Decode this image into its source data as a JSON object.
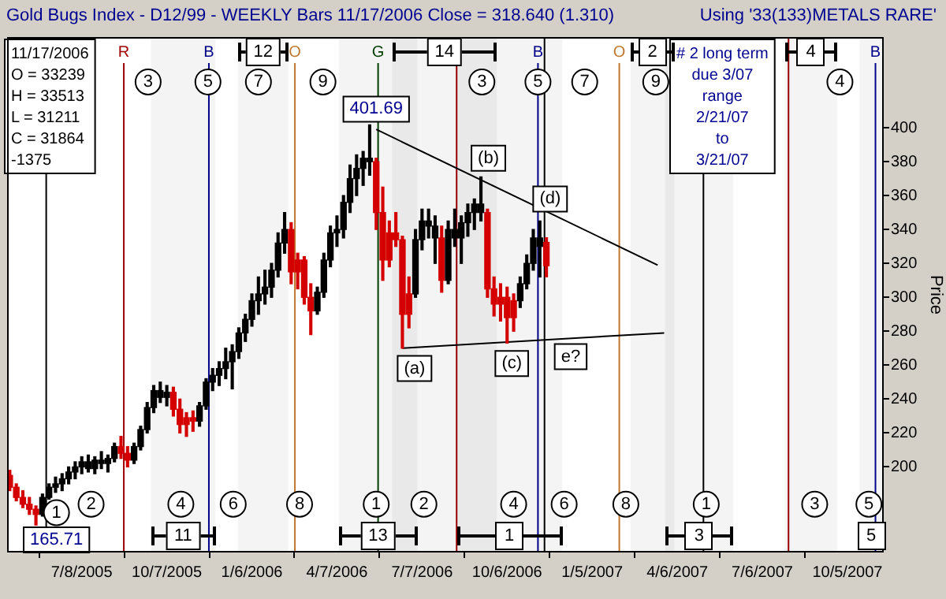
{
  "chart_data": {
    "type": "candlestick",
    "title": "Gold Bugs Index - D12/99  - WEEKLY Bars  11/17/2006 Close = 318.640 (1.310)",
    "subtitle": "Using '33(133)METALS RARE'",
    "ylabel": "Price",
    "x": [
      "2005-04-22",
      "2005-04-29",
      "2005-05-06",
      "2005-05-13",
      "2005-05-20",
      "2005-05-27",
      "2005-06-03",
      "2005-06-10",
      "2005-06-17",
      "2005-06-24",
      "2005-07-01",
      "2005-07-08",
      "2005-07-15",
      "2005-07-22",
      "2005-07-29",
      "2005-08-05",
      "2005-08-12",
      "2005-08-19",
      "2005-08-26",
      "2005-09-02",
      "2005-09-09",
      "2005-09-16",
      "2005-09-23",
      "2005-09-30",
      "2005-10-07",
      "2005-10-14",
      "2005-10-21",
      "2005-10-28",
      "2005-11-04",
      "2005-11-11",
      "2005-11-18",
      "2005-11-25",
      "2005-12-02",
      "2005-12-09",
      "2005-12-16",
      "2005-12-23",
      "2005-12-30",
      "2006-01-06",
      "2006-01-13",
      "2006-01-20",
      "2006-01-27",
      "2006-02-03",
      "2006-02-10",
      "2006-02-17",
      "2006-02-24",
      "2006-03-03",
      "2006-03-10",
      "2006-03-17",
      "2006-03-24",
      "2006-03-31",
      "2006-04-07",
      "2006-04-14",
      "2006-04-21",
      "2006-04-28",
      "2006-05-05",
      "2006-05-12",
      "2006-05-19",
      "2006-05-26",
      "2006-06-02",
      "2006-06-09",
      "2006-06-16",
      "2006-06-23",
      "2006-06-30",
      "2006-07-07",
      "2006-07-14",
      "2006-07-21",
      "2006-07-28",
      "2006-08-04",
      "2006-08-11",
      "2006-08-18",
      "2006-08-25",
      "2006-09-01",
      "2006-09-08",
      "2006-09-15",
      "2006-09-22",
      "2006-09-29",
      "2006-10-06",
      "2006-10-13",
      "2006-10-20",
      "2006-10-27",
      "2006-11-03",
      "2006-11-10",
      "2006-11-17"
    ],
    "ohlc": [
      [
        195,
        198,
        186,
        188
      ],
      [
        188,
        190,
        180,
        182
      ],
      [
        182,
        186,
        176,
        178
      ],
      [
        178,
        182,
        172,
        175
      ],
      [
        175,
        177,
        165.71,
        172
      ],
      [
        172,
        184,
        171,
        182
      ],
      [
        182,
        190,
        181,
        188
      ],
      [
        188,
        194,
        185,
        190
      ],
      [
        190,
        196,
        186,
        193
      ],
      [
        193,
        200,
        190,
        197
      ],
      [
        197,
        203,
        193,
        200
      ],
      [
        200,
        206,
        196,
        203
      ],
      [
        199,
        207,
        197,
        203
      ],
      [
        199,
        206,
        196,
        204
      ],
      [
        202,
        209,
        199,
        204
      ],
      [
        202,
        207,
        197,
        205
      ],
      [
        205,
        214,
        203,
        212
      ],
      [
        212,
        218,
        205,
        208
      ],
      [
        208,
        212,
        200,
        204
      ],
      [
        204,
        214,
        202,
        212
      ],
      [
        212,
        224,
        210,
        222
      ],
      [
        222,
        238,
        220,
        235
      ],
      [
        235,
        248,
        232,
        245
      ],
      [
        241,
        250,
        238,
        245
      ],
      [
        241,
        248,
        236,
        244
      ],
      [
        244,
        247,
        230,
        234
      ],
      [
        234,
        240,
        220,
        225
      ],
      [
        229,
        232,
        218,
        225
      ],
      [
        229,
        233,
        221,
        227
      ],
      [
        227,
        238,
        224,
        236
      ],
      [
        236,
        252,
        234,
        250
      ],
      [
        250,
        258,
        245,
        254
      ],
      [
        254,
        262,
        248,
        258
      ],
      [
        258,
        270,
        252,
        262
      ],
      [
        262,
        272,
        246,
        268
      ],
      [
        268,
        282,
        264,
        279
      ],
      [
        279,
        290,
        274,
        287
      ],
      [
        287,
        302,
        283,
        298
      ],
      [
        298,
        312,
        290,
        302
      ],
      [
        302,
        316,
        296,
        306
      ],
      [
        306,
        320,
        300,
        316
      ],
      [
        316,
        338,
        312,
        332
      ],
      [
        332,
        350,
        326,
        340
      ],
      [
        340,
        344,
        308,
        315
      ],
      [
        322,
        326,
        305,
        315
      ],
      [
        322,
        324,
        296,
        300
      ],
      [
        300,
        308,
        278,
        292
      ],
      [
        292,
        306,
        290,
        303
      ],
      [
        303,
        326,
        300,
        322
      ],
      [
        322,
        342,
        318,
        338
      ],
      [
        338,
        348,
        330,
        340
      ],
      [
        340,
        360,
        335,
        356
      ],
      [
        356,
        378,
        350,
        370
      ],
      [
        370,
        384,
        360,
        376
      ],
      [
        376,
        386,
        366,
        382
      ],
      [
        380,
        401.69,
        372,
        382
      ],
      [
        380,
        382,
        340,
        350
      ],
      [
        350,
        365,
        310,
        322
      ],
      [
        338,
        345,
        318,
        322
      ],
      [
        338,
        350,
        330,
        334
      ],
      [
        334,
        336,
        270,
        290
      ],
      [
        302,
        312,
        282,
        290
      ],
      [
        302,
        340,
        300,
        334
      ],
      [
        334,
        352,
        328,
        345
      ],
      [
        342,
        352,
        335,
        345
      ],
      [
        335,
        348,
        320,
        342
      ],
      [
        335,
        342,
        303,
        310
      ],
      [
        310,
        345,
        308,
        340
      ],
      [
        335,
        352,
        330,
        340
      ],
      [
        335,
        348,
        320,
        344
      ],
      [
        344,
        355,
        336,
        350
      ],
      [
        350,
        358,
        340,
        355
      ],
      [
        350,
        371,
        345,
        355
      ],
      [
        350,
        352,
        300,
        305
      ],
      [
        305,
        312,
        289,
        296
      ],
      [
        300,
        308,
        286,
        296
      ],
      [
        300,
        306,
        273,
        288
      ],
      [
        298,
        302,
        280,
        288
      ],
      [
        298,
        312,
        294,
        308
      ],
      [
        308,
        325,
        305,
        320
      ],
      [
        320,
        340,
        316,
        335
      ],
      [
        330,
        345,
        312,
        335
      ],
      [
        332.39,
        335.13,
        312.11,
        318.64
      ]
    ],
    "colors": [
      "#d40000",
      "#d40000",
      "#d40000",
      "#d40000",
      "#d40000",
      "#000000",
      "#000000",
      "#000000",
      "#000000",
      "#000000",
      "#000000",
      "#000000",
      "#000000",
      "#000000",
      "#000000",
      "#000000",
      "#000000",
      "#d40000",
      "#d40000",
      "#000000",
      "#000000",
      "#000000",
      "#000000",
      "#000000",
      "#000000",
      "#d40000",
      "#d40000",
      "#d40000",
      "#d40000",
      "#000000",
      "#000000",
      "#000000",
      "#000000",
      "#000000",
      "#000000",
      "#000000",
      "#000000",
      "#000000",
      "#000000",
      "#000000",
      "#000000",
      "#000000",
      "#000000",
      "#d40000",
      "#d40000",
      "#d40000",
      "#d40000",
      "#000000",
      "#000000",
      "#000000",
      "#000000",
      "#000000",
      "#000000",
      "#000000",
      "#000000",
      "#000000",
      "#d40000",
      "#d40000",
      "#d40000",
      "#d40000",
      "#d40000",
      "#d40000",
      "#000000",
      "#000000",
      "#000000",
      "#000000",
      "#d40000",
      "#000000",
      "#000000",
      "#000000",
      "#000000",
      "#000000",
      "#000000",
      "#d40000",
      "#d40000",
      "#d40000",
      "#d40000",
      "#d40000",
      "#000000",
      "#000000",
      "#000000",
      "#000000",
      "#d40000"
    ],
    "series": [
      {
        "type": "line",
        "x": [
          "2006-05-19",
          "2007-03-16"
        ],
        "values": [
          399,
          319
        ],
        "color": "#000000"
      },
      {
        "type": "line",
        "x": [
          "2006-06-16",
          "2007-03-23"
        ],
        "values": [
          270,
          279
        ],
        "color": "#000000"
      }
    ],
    "xlim": [
      "2005-04-20",
      "2007-11-12"
    ],
    "xticks": [
      {
        "value": "2005-07-08",
        "label": "7/8/2005"
      },
      {
        "value": "2005-10-07",
        "label": "10/7/2005"
      },
      {
        "value": "2006-01-06",
        "label": "1/6/2006"
      },
      {
        "value": "2006-04-07",
        "label": "4/7/2006"
      },
      {
        "value": "2006-07-07",
        "label": "7/7/2006"
      },
      {
        "value": "2006-10-06",
        "label": "10/6/2006"
      },
      {
        "value": "2007-01-05",
        "label": "1/5/2007"
      },
      {
        "value": "2007-04-06",
        "label": "4/6/2007"
      },
      {
        "value": "2007-07-06",
        "label": "7/6/2007"
      },
      {
        "value": "2007-10-05",
        "label": "10/5/2007"
      }
    ],
    "ylim": [
      150,
      453
    ],
    "yticks": [
      200,
      220,
      240,
      260,
      280,
      300,
      320,
      340,
      360,
      380,
      400
    ],
    "ref_lines": [
      {
        "axis": "x",
        "value": "2005-05-31",
        "label": null,
        "color": "#000000"
      },
      {
        "axis": "x",
        "value": "2005-08-22",
        "label": "R",
        "color": "#a00000"
      },
      {
        "axis": "x",
        "value": "2005-11-21",
        "label": "B",
        "color": "#000090"
      },
      {
        "axis": "x",
        "value": "2006-02-21",
        "label": "O",
        "color": "#c07830"
      },
      {
        "axis": "x",
        "value": "2006-05-21",
        "label": "G",
        "color": "#004000"
      },
      {
        "axis": "x",
        "value": "2006-08-13",
        "label": null,
        "color": "#a00000"
      },
      {
        "axis": "x",
        "value": "2006-11-08",
        "label": "B",
        "color": "#000090"
      },
      {
        "axis": "x",
        "value": "2006-11-15",
        "label": null,
        "color": "#000000"
      },
      {
        "axis": "x",
        "value": "2007-02-03",
        "label": "O",
        "color": "#c07830"
      },
      {
        "axis": "x",
        "value": "2007-05-04",
        "label": null,
        "color": "#000000"
      },
      {
        "axis": "x",
        "value": "2007-08-03",
        "label": null,
        "color": "#a00000"
      },
      {
        "axis": "x",
        "value": "2007-11-04",
        "label": "B",
        "color": "#000090"
      }
    ],
    "bands": [
      {
        "axis": "x",
        "from": "2005-09-20",
        "to": "2005-11-28",
        "label": "11"
      },
      {
        "axis": "x",
        "from": "2005-12-22",
        "to": "2006-02-14",
        "label": "12"
      },
      {
        "axis": "x",
        "from": "2006-04-09",
        "to": "2006-07-02",
        "label": "13"
      },
      {
        "axis": "x",
        "from": "2006-06-05",
        "to": "2006-09-25",
        "label": "14"
      },
      {
        "axis": "x",
        "from": "2006-08-13",
        "to": "2006-12-04",
        "label": "1"
      },
      {
        "axis": "x",
        "from": "2007-02-15",
        "to": "2007-04-03",
        "label": "2"
      },
      {
        "axis": "x",
        "from": "2007-03-24",
        "to": "2007-06-05",
        "label": "3"
      },
      {
        "axis": "x",
        "from": "2007-07-30",
        "to": "2007-09-24",
        "label": "4"
      },
      {
        "axis": "x",
        "from": "2007-10-18",
        "to": "2007-11-12",
        "label": "5"
      }
    ],
    "annotations": [
      "11/17/2006\nO = 33239\nH = 33513\nL = 31211\nC = 31864\n-1375",
      "# 2 long term\ndue 3/07\nrange\n2/21/07\nto\n3/21/07",
      {
        "text": "401.69",
        "x": "2006-05-19",
        "y": 411
      },
      {
        "text": "(a)",
        "x": "2006-06-29",
        "y": 258
      },
      {
        "text": "(b)",
        "x": "2006-09-16",
        "y": 382
      },
      {
        "text": "(c)",
        "x": "2006-10-11",
        "y": 261
      },
      {
        "text": "(d)",
        "x": "2006-11-21",
        "y": 358
      },
      {
        "text": "e?",
        "x": "2006-12-13",
        "y": 265
      },
      {
        "text": "165.71",
        "x": "2005-06-11",
        "y": 157
      },
      {
        "text": "3",
        "x": "2005-09-17",
        "y": 427
      },
      {
        "text": "5",
        "x": "2005-11-20",
        "y": 427
      },
      {
        "text": "7",
        "x": "2006-01-13",
        "y": 427
      },
      {
        "text": "9",
        "x": "2006-03-23",
        "y": 427
      },
      {
        "text": "3",
        "x": "2006-09-09",
        "y": 427
      },
      {
        "text": "5",
        "x": "2006-11-08",
        "y": 427
      },
      {
        "text": "7",
        "x": "2006-12-28",
        "y": 427
      },
      {
        "text": "9",
        "x": "2007-03-14",
        "y": 427
      },
      {
        "text": "4",
        "x": "2007-09-27",
        "y": 427
      },
      {
        "text": "1",
        "x": "2005-06-11",
        "y": 173
      },
      {
        "text": "2",
        "x": "2005-07-18",
        "y": 178
      },
      {
        "text": "4",
        "x": "2005-10-22",
        "y": 178
      },
      {
        "text": "6",
        "x": "2005-12-17",
        "y": 178
      },
      {
        "text": "8",
        "x": "2006-02-26",
        "y": 178
      },
      {
        "text": "1",
        "x": "2006-05-19",
        "y": 178
      },
      {
        "text": "2",
        "x": "2006-07-09",
        "y": 178
      },
      {
        "text": "4",
        "x": "2006-10-13",
        "y": 178
      },
      {
        "text": "6",
        "x": "2006-12-06",
        "y": 178
      },
      {
        "text": "8",
        "x": "2007-02-10",
        "y": 178
      },
      {
        "text": "1",
        "x": "2007-05-07",
        "y": 178
      },
      {
        "text": "3",
        "x": "2007-08-31",
        "y": 178
      },
      {
        "text": "5",
        "x": "2007-10-28",
        "y": 178
      }
    ]
  }
}
